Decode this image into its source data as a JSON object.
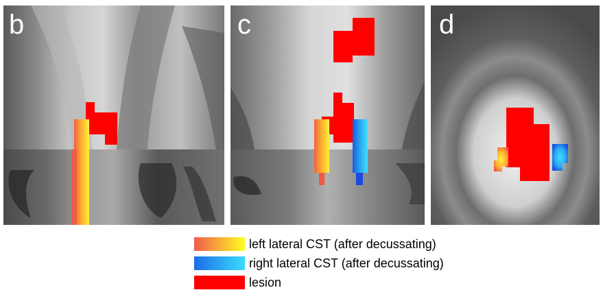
{
  "panels": [
    {
      "letter": "b"
    },
    {
      "letter": "c"
    },
    {
      "letter": "d"
    }
  ],
  "legend": {
    "items": [
      {
        "label": "left lateral CST (after decussating)",
        "gradient_from": "#f05a50",
        "gradient_to": "#ffff20"
      },
      {
        "label": "right lateral CST (after decussating)",
        "gradient_from": "#1a6ee6",
        "gradient_to": "#3cdcff"
      },
      {
        "label": "lesion",
        "color": "#ff0000"
      }
    ]
  },
  "colors": {
    "lesion": "#ff0000",
    "left_cst": "#ffd030",
    "right_cst": "#2aa8f0"
  }
}
